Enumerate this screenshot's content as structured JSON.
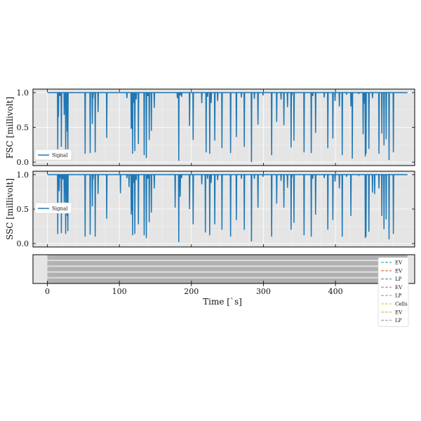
{
  "chart_data": [
    {
      "type": "line",
      "panel": "fsc",
      "ylabel": "FSC [millivolt]",
      "ylim": [
        -0.05,
        1.05
      ],
      "yticks": [
        "0.0",
        "0.5",
        "1.0"
      ],
      "legend": {
        "entries": [
          "Signal"
        ],
        "placement": "lower-left"
      },
      "series": [
        {
          "name": "Signal",
          "color": "#1f77b4",
          "baseline": 1.0
        }
      ],
      "dips": [
        [
          14,
          0.18
        ],
        [
          15,
          0.65
        ],
        [
          17,
          0.95
        ],
        [
          19,
          0.22
        ],
        [
          23,
          0.68
        ],
        [
          25,
          0.12
        ],
        [
          27,
          0.44
        ],
        [
          28,
          0.16
        ],
        [
          52,
          0.12
        ],
        [
          59,
          0.13
        ],
        [
          62,
          0.55
        ],
        [
          63,
          0.92
        ],
        [
          66,
          0.14
        ],
        [
          70,
          0.72
        ],
        [
          82,
          0.35
        ],
        [
          110,
          0.92
        ],
        [
          116,
          0.48
        ],
        [
          117,
          0.48
        ],
        [
          118,
          0.12
        ],
        [
          120,
          0.85
        ],
        [
          121,
          0.16
        ],
        [
          123,
          0.9
        ],
        [
          126,
          0.26
        ],
        [
          134,
          0.1
        ],
        [
          137,
          0.06
        ],
        [
          139,
          0.95
        ],
        [
          141,
          0.32
        ],
        [
          144,
          0.45
        ],
        [
          148,
          0.78
        ],
        [
          180,
          0.92
        ],
        [
          182,
          0.02
        ],
        [
          184,
          0.96
        ],
        [
          186,
          0.94
        ],
        [
          197,
          0.52
        ],
        [
          202,
          0.32
        ],
        [
          214,
          0.85
        ],
        [
          220,
          0.14
        ],
        [
          222,
          0.94
        ],
        [
          225,
          0.12
        ],
        [
          227,
          0.85
        ],
        [
          232,
          0.31
        ],
        [
          236,
          0.88
        ],
        [
          242,
          0.2
        ],
        [
          254,
          0.13
        ],
        [
          262,
          0.36
        ],
        [
          269,
          0.93
        ],
        [
          273,
          0.22
        ],
        [
          283,
          0.0
        ],
        [
          287,
          0.91
        ],
        [
          292,
          0.54
        ],
        [
          299,
          0.96
        ],
        [
          311,
          0.1
        ],
        [
          318,
          0.58
        ],
        [
          324,
          0.9
        ],
        [
          328,
          0.53
        ],
        [
          333,
          0.79
        ],
        [
          338,
          0.21
        ],
        [
          339,
          0.96
        ],
        [
          342,
          0.31
        ],
        [
          356,
          0.14
        ],
        [
          366,
          0.13
        ],
        [
          368,
          0.95
        ],
        [
          372,
          0.42
        ],
        [
          384,
          0.93
        ],
        [
          389,
          0.2
        ],
        [
          396,
          0.34
        ],
        [
          399,
          0.88
        ],
        [
          405,
          0.8
        ],
        [
          409,
          0.1
        ],
        [
          415,
          0.97
        ],
        [
          421,
          0.8
        ],
        [
          423,
          0.05
        ],
        [
          432,
          0.98
        ],
        [
          438,
          0.4
        ],
        [
          440,
          0.84
        ],
        [
          441,
          0.08
        ],
        [
          442,
          0.12
        ],
        [
          446,
          0.19
        ],
        [
          451,
          0.92
        ],
        [
          460,
          0.12
        ],
        [
          464,
          0.41
        ],
        [
          467,
          0.24
        ],
        [
          470,
          0.33
        ],
        [
          474,
          0.03
        ],
        [
          480,
          0.14
        ]
      ]
    },
    {
      "type": "line",
      "panel": "ssc",
      "ylabel": "SSC [millivolt]",
      "ylim": [
        -0.05,
        1.05
      ],
      "yticks": [
        "0.0",
        "0.5",
        "1.0"
      ],
      "legend": {
        "entries": [
          "Signal"
        ],
        "placement": "center-left"
      },
      "series": [
        {
          "name": "Signal",
          "color": "#1f77b4",
          "baseline": 1.0
        }
      ],
      "dips": [
        [
          14,
          0.14
        ],
        [
          16,
          0.76
        ],
        [
          17,
          0.95
        ],
        [
          19,
          0.15
        ],
        [
          21,
          0.93
        ],
        [
          23,
          0.6
        ],
        [
          25,
          0.14
        ],
        [
          26,
          0.97
        ],
        [
          27,
          0.4
        ],
        [
          28,
          0.18
        ],
        [
          52,
          0.1
        ],
        [
          59,
          0.13
        ],
        [
          62,
          0.54
        ],
        [
          63,
          0.93
        ],
        [
          66,
          0.1
        ],
        [
          70,
          0.72
        ],
        [
          82,
          0.36
        ],
        [
          101,
          0.73
        ],
        [
          110,
          0.95
        ],
        [
          113,
          0.82
        ],
        [
          116,
          0.42
        ],
        [
          117,
          0.48
        ],
        [
          118,
          0.12
        ],
        [
          120,
          0.88
        ],
        [
          121,
          0.14
        ],
        [
          123,
          0.92
        ],
        [
          126,
          0.28
        ],
        [
          134,
          0.12
        ],
        [
          137,
          0.08
        ],
        [
          139,
          0.94
        ],
        [
          141,
          0.31
        ],
        [
          144,
          0.45
        ],
        [
          148,
          0.8
        ],
        [
          177,
          0.52
        ],
        [
          182,
          0.02
        ],
        [
          184,
          0.68
        ],
        [
          186,
          0.95
        ],
        [
          197,
          0.5
        ],
        [
          202,
          0.28
        ],
        [
          214,
          0.86
        ],
        [
          219,
          0.16
        ],
        [
          222,
          0.94
        ],
        [
          225,
          0.12
        ],
        [
          227,
          0.88
        ],
        [
          232,
          0.28
        ],
        [
          236,
          0.92
        ],
        [
          242,
          0.2
        ],
        [
          254,
          0.1
        ],
        [
          262,
          0.34
        ],
        [
          269,
          0.94
        ],
        [
          273,
          0.2
        ],
        [
          283,
          0.03
        ],
        [
          287,
          0.94
        ],
        [
          292,
          0.52
        ],
        [
          299,
          0.97
        ],
        [
          311,
          0.1
        ],
        [
          318,
          0.58
        ],
        [
          324,
          0.91
        ],
        [
          328,
          0.52
        ],
        [
          333,
          0.81
        ],
        [
          338,
          0.2
        ],
        [
          339,
          0.96
        ],
        [
          342,
          0.3
        ],
        [
          356,
          0.12
        ],
        [
          366,
          0.1
        ],
        [
          368,
          0.94
        ],
        [
          372,
          0.42
        ],
        [
          384,
          0.95
        ],
        [
          389,
          0.2
        ],
        [
          396,
          0.34
        ],
        [
          399,
          0.9
        ],
        [
          405,
          0.8
        ],
        [
          409,
          0.1
        ],
        [
          415,
          0.97
        ],
        [
          421,
          0.4
        ],
        [
          432,
          0.99
        ],
        [
          441,
          0.08
        ],
        [
          442,
          0.1
        ],
        [
          446,
          0.17
        ],
        [
          451,
          0.74
        ],
        [
          454,
          0.72
        ],
        [
          460,
          0.8
        ],
        [
          464,
          0.4
        ],
        [
          467,
          0.21
        ],
        [
          470,
          0.35
        ],
        [
          474,
          0.06
        ],
        [
          480,
          0.14
        ]
      ]
    },
    {
      "type": "area",
      "panel": "gates",
      "xlabel": "Time [`s]",
      "xlim": [
        -20,
        510
      ],
      "xticks": [
        "0",
        "100",
        "200",
        "300",
        "400"
      ],
      "band": {
        "start": 0,
        "end": 500,
        "color": "#b0b0b0"
      },
      "stripe_count": 4,
      "legend": {
        "placement": "right",
        "entries": [
          {
            "label": "EV",
            "color": "#66c2a5"
          },
          {
            "label": "EV",
            "color": "#fc8d62"
          },
          {
            "label": "LP",
            "color": "#8da0cb"
          },
          {
            "label": "EV",
            "color": "#e78ac3"
          },
          {
            "label": "LP",
            "color": "#a6d854"
          },
          {
            "label": "Cells",
            "color": "#ffd92f"
          },
          {
            "label": "EV",
            "color": "#e5c494"
          },
          {
            "label": "LP",
            "color": "#b3b3b3"
          }
        ]
      }
    }
  ]
}
